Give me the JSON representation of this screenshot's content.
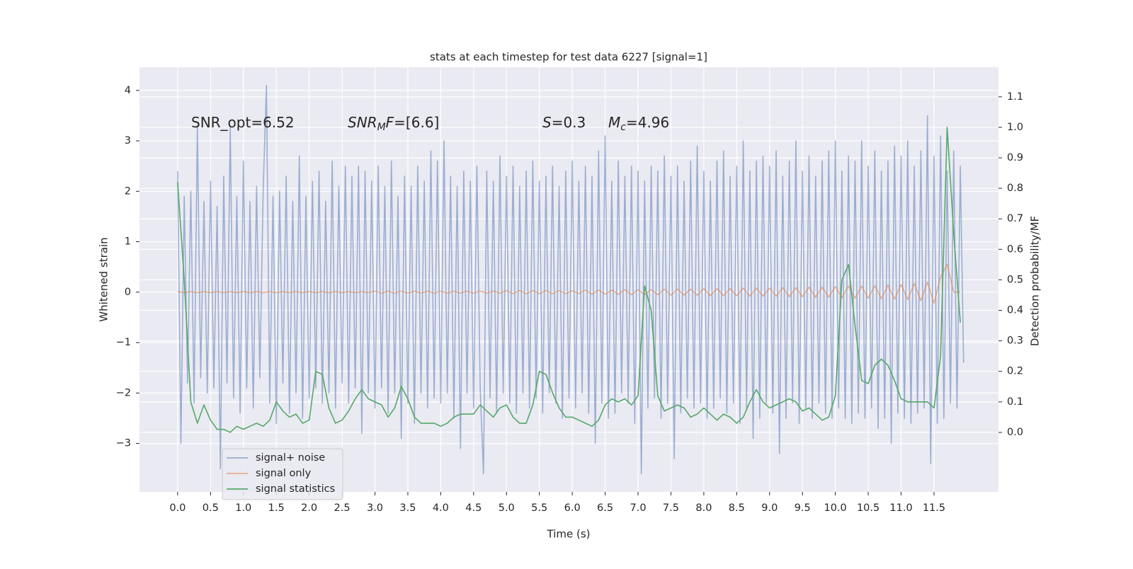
{
  "chart_data": {
    "type": "line",
    "title": "stats at each timestep for test data 6227 [signal=1]",
    "xlabel": "Time (s)",
    "ylabel": "Whitened strain",
    "y2label": "Detection probability/MF",
    "xlim": [
      -0.58,
      12.48
    ],
    "ylim": [
      -3.96,
      4.46
    ],
    "y2lim": [
      -0.195,
      1.197
    ],
    "xticks": [
      {
        "value": 0,
        "label": "0.0"
      },
      {
        "value": 0.5,
        "label": "0.5"
      },
      {
        "value": 1,
        "label": "1.0"
      },
      {
        "value": 1.5,
        "label": "1.5"
      },
      {
        "value": 2,
        "label": "2.0"
      },
      {
        "value": 2.5,
        "label": "2.5"
      },
      {
        "value": 3,
        "label": "3.0"
      },
      {
        "value": 3.5,
        "label": "3.5"
      },
      {
        "value": 4,
        "label": "4.0"
      },
      {
        "value": 4.5,
        "label": "4.5"
      },
      {
        "value": 5,
        "label": "5.0"
      },
      {
        "value": 5.5,
        "label": "5.5"
      },
      {
        "value": 6,
        "label": "6.0"
      },
      {
        "value": 6.5,
        "label": "6.5"
      },
      {
        "value": 7,
        "label": "7.0"
      },
      {
        "value": 7.5,
        "label": "7.5"
      },
      {
        "value": 8,
        "label": "8.0"
      },
      {
        "value": 8.5,
        "label": "8.5"
      },
      {
        "value": 9,
        "label": "9.0"
      },
      {
        "value": 9.5,
        "label": "9.5"
      },
      {
        "value": 10,
        "label": "10.0"
      },
      {
        "value": 10.5,
        "label": "10.5"
      },
      {
        "value": 11,
        "label": "11.0"
      },
      {
        "value": 11.5,
        "label": "11.5"
      }
    ],
    "yticks": [
      {
        "value": -3,
        "label": "−3"
      },
      {
        "value": -2,
        "label": "−2"
      },
      {
        "value": -1,
        "label": "−1"
      },
      0,
      1,
      2,
      3,
      4
    ],
    "y2ticks": [
      {
        "value": 0,
        "label": "0.0"
      },
      {
        "value": 0.1,
        "label": "0.1"
      },
      {
        "value": 0.2,
        "label": "0.2"
      },
      {
        "value": 0.3,
        "label": "0.3"
      },
      {
        "value": 0.4,
        "label": "0.4"
      },
      {
        "value": 0.5,
        "label": "0.5"
      },
      {
        "value": 0.6,
        "label": "0.6"
      },
      {
        "value": 0.7,
        "label": "0.7"
      },
      {
        "value": 0.8,
        "label": "0.8"
      },
      {
        "value": 0.9,
        "label": "0.9"
      },
      {
        "value": 1,
        "label": "1.0"
      },
      {
        "value": 1.1,
        "label": "1.1"
      }
    ],
    "grid": true,
    "legend_loc": "lower left",
    "annotations": [
      {
        "parts": [
          {
            "text": "SNR_opt=6.52"
          }
        ]
      },
      {
        "parts": [
          {
            "text": "SNR",
            "italic": true
          },
          {
            "text": "M",
            "italic": true,
            "sub": true
          },
          {
            "text": "F",
            "italic": true
          },
          {
            "text": "=[6.6]"
          }
        ]
      },
      {
        "parts": [
          {
            "text": "S",
            "italic": true
          },
          {
            "text": "=0.3"
          }
        ]
      },
      {
        "parts": [
          {
            "text": "M",
            "italic": true
          },
          {
            "text": "c",
            "italic": true,
            "sub": true
          },
          {
            "text": "=4.96"
          }
        ]
      }
    ],
    "series": [
      {
        "name": "signal+ noise",
        "color": "#4c72b0",
        "opacity": 0.5,
        "x": [
          0,
          0.05,
          0.1,
          0.15,
          0.2,
          0.25,
          0.3,
          0.35,
          0.4,
          0.45,
          0.5,
          0.55,
          0.6,
          0.65,
          0.7,
          0.75,
          0.8,
          0.85,
          0.9,
          0.95,
          1,
          1.05,
          1.1,
          1.15,
          1.2,
          1.25,
          1.3,
          1.35,
          1.4,
          1.45,
          1.5,
          1.55,
          1.6,
          1.65,
          1.7,
          1.75,
          1.8,
          1.85,
          1.9,
          1.95,
          2,
          2.05,
          2.1,
          2.15,
          2.2,
          2.25,
          2.3,
          2.35,
          2.4,
          2.45,
          2.5,
          2.55,
          2.6,
          2.65,
          2.7,
          2.75,
          2.8,
          2.85,
          2.9,
          2.95,
          3,
          3.05,
          3.1,
          3.15,
          3.2,
          3.25,
          3.3,
          3.35,
          3.4,
          3.45,
          3.5,
          3.55,
          3.6,
          3.65,
          3.7,
          3.75,
          3.8,
          3.85,
          3.9,
          3.95,
          4,
          4.05,
          4.1,
          4.15,
          4.2,
          4.25,
          4.3,
          4.35,
          4.4,
          4.45,
          4.5,
          4.55,
          4.6,
          4.65,
          4.7,
          4.75,
          4.8,
          4.85,
          4.9,
          4.95,
          5,
          5.05,
          5.1,
          5.15,
          5.2,
          5.25,
          5.3,
          5.35,
          5.4,
          5.45,
          5.5,
          5.55,
          5.6,
          5.65,
          5.7,
          5.75,
          5.8,
          5.85,
          5.9,
          5.95,
          6,
          6.05,
          6.1,
          6.15,
          6.2,
          6.25,
          6.3,
          6.35,
          6.4,
          6.45,
          6.5,
          6.55,
          6.6,
          6.65,
          6.7,
          6.75,
          6.8,
          6.85,
          6.9,
          6.95,
          7,
          7.05,
          7.1,
          7.15,
          7.2,
          7.25,
          7.3,
          7.35,
          7.4,
          7.45,
          7.5,
          7.55,
          7.6,
          7.65,
          7.7,
          7.75,
          7.8,
          7.85,
          7.9,
          7.95,
          8,
          8.05,
          8.1,
          8.15,
          8.2,
          8.25,
          8.3,
          8.35,
          8.4,
          8.45,
          8.5,
          8.55,
          8.6,
          8.65,
          8.7,
          8.75,
          8.8,
          8.85,
          8.9,
          8.95,
          9,
          9.05,
          9.1,
          9.15,
          9.2,
          9.25,
          9.3,
          9.35,
          9.4,
          9.45,
          9.5,
          9.55,
          9.6,
          9.65,
          9.7,
          9.75,
          9.8,
          9.85,
          9.9,
          9.95,
          10,
          10.05,
          10.1,
          10.15,
          10.2,
          10.25,
          10.3,
          10.35,
          10.4,
          10.45,
          10.5,
          10.55,
          10.6,
          10.65,
          10.7,
          10.75,
          10.8,
          10.85,
          10.9,
          10.95,
          11,
          11.05,
          11.1,
          11.15,
          11.2,
          11.25,
          11.3,
          11.35,
          11.4,
          11.45,
          11.5,
          11.55,
          11.6,
          11.65,
          11.7,
          11.75,
          11.8,
          11.85,
          11.9,
          11.95
        ],
        "values": [
          2.4,
          -3.0,
          1.9,
          -1.8,
          2.0,
          -2.2,
          3.3,
          -1.7,
          1.8,
          -2.0,
          2.2,
          -1.9,
          1.7,
          -3.5,
          2.3,
          -1.8,
          3.3,
          -2.1,
          1.9,
          -2.4,
          2.6,
          -1.9,
          1.8,
          -2.3,
          2.1,
          -1.7,
          2.0,
          4.1,
          -2.2,
          1.9,
          -2.6,
          2.0,
          -1.8,
          2.3,
          -2.4,
          1.8,
          -2.0,
          2.7,
          -2.5,
          1.9,
          -2.1,
          2.2,
          -1.9,
          2.4,
          -2.2,
          1.8,
          -2.0,
          2.6,
          -2.3,
          2.1,
          -1.8,
          2.5,
          -2.2,
          2.3,
          -1.9,
          2.5,
          -2.8,
          2.4,
          -2.0,
          2.2,
          -2.3,
          2.5,
          -1.9,
          2.1,
          -2.4,
          2.6,
          -2.0,
          1.9,
          -2.9,
          2.3,
          -2.2,
          2.1,
          -2.6,
          2.5,
          -2.0,
          2.2,
          -2.3,
          2.8,
          -2.1,
          2.6,
          -2.2,
          3.0,
          -2.0,
          2.3,
          -2.5,
          2.1,
          -3.1,
          2.4,
          -2.0,
          2.2,
          -2.3,
          2.5,
          -1.9,
          -3.6,
          2.4,
          -2.1,
          2.2,
          -2.4,
          2.7,
          -2.0,
          2.3,
          -2.2,
          2.5,
          -2.4,
          2.1,
          -2.0,
          2.4,
          -2.3,
          2.6,
          -2.1,
          2.2,
          -2.4,
          2.3,
          -2.0,
          2.5,
          -2.2,
          2.1,
          -2.5,
          2.4,
          -2.1,
          2.6,
          -2.3,
          2.2,
          -2.0,
          2.5,
          -2.4,
          2.3,
          -3.0,
          2.8,
          -2.2,
          3.1,
          -2.5,
          2.2,
          -2.4,
          2.6,
          -2.0,
          2.3,
          -2.2,
          2.5,
          -2.6,
          2.4,
          -3.6,
          2.2,
          -2.3,
          2.5,
          -2.1,
          2.4,
          -2.5,
          2.7,
          -2.2,
          2.3,
          -3.3,
          2.5,
          -2.4,
          2.2,
          -2.1,
          2.6,
          -2.3,
          2.9,
          -2.2,
          2.4,
          -2.5,
          2.2,
          -2.3,
          2.6,
          -2.1,
          2.8,
          -2.4,
          2.3,
          -2.2,
          2.5,
          -2.6,
          3.0,
          -2.3,
          2.4,
          -2.9,
          2.6,
          -2.5,
          2.7,
          -2.2,
          2.5,
          -2.4,
          2.8,
          -3.2,
          2.3,
          -2.5,
          2.6,
          -2.2,
          3.0,
          -2.6,
          2.4,
          -2.3,
          2.7,
          -2.5,
          2.3,
          -2.2,
          2.6,
          -2.4,
          2.8,
          -2.5,
          3.0,
          -2.3,
          2.4,
          -2.5,
          2.7,
          -2.6,
          2.6,
          -2.4,
          3.0,
          -2.5,
          2.5,
          -2.3,
          2.8,
          -2.7,
          2.4,
          -2.5,
          2.6,
          -3.0,
          2.9,
          -2.4,
          2.7,
          -2.5,
          3.0,
          -2.6,
          2.5,
          -2.4,
          2.8,
          -2.3,
          3.5,
          -3.4,
          2.7,
          -2.6,
          3.1,
          -2.5,
          2.4,
          -2.2,
          2.8,
          -2.3,
          2.5,
          -1.4
        ]
      },
      {
        "name": "signal only",
        "color": "#dd8452",
        "opacity": 0.6,
        "x": [
          0,
          0.1,
          0.2,
          0.3,
          0.4,
          0.5,
          0.6,
          0.7,
          0.8,
          0.9,
          1,
          1.1,
          1.2,
          1.3,
          1.4,
          1.5,
          1.6,
          1.7,
          1.8,
          1.9,
          2,
          2.1,
          2.2,
          2.3,
          2.4,
          2.5,
          2.6,
          2.7,
          2.8,
          2.9,
          3,
          3.1,
          3.2,
          3.3,
          3.4,
          3.5,
          3.6,
          3.7,
          3.8,
          3.9,
          4,
          4.1,
          4.2,
          4.3,
          4.4,
          4.5,
          4.6,
          4.7,
          4.8,
          4.9,
          5,
          5.1,
          5.2,
          5.3,
          5.4,
          5.5,
          5.6,
          5.7,
          5.8,
          5.9,
          6,
          6.1,
          6.2,
          6.3,
          6.4,
          6.5,
          6.6,
          6.7,
          6.8,
          6.9,
          7,
          7.1,
          7.2,
          7.3,
          7.4,
          7.5,
          7.6,
          7.7,
          7.8,
          7.9,
          8,
          8.1,
          8.2,
          8.3,
          8.4,
          8.5,
          8.6,
          8.7,
          8.8,
          8.9,
          9,
          9.1,
          9.2,
          9.3,
          9.4,
          9.5,
          9.6,
          9.7,
          9.8,
          9.9,
          10,
          10.1,
          10.2,
          10.3,
          10.4,
          10.5,
          10.6,
          10.7,
          10.8,
          10.9,
          11,
          11.1,
          11.2,
          11.3,
          11.4,
          11.5,
          11.6,
          11.7,
          11.8,
          11.9
        ],
        "values": [
          0.01,
          -0.01,
          0.01,
          -0.01,
          0.01,
          -0.01,
          0.01,
          -0.01,
          0.01,
          -0.01,
          0.01,
          -0.01,
          0.01,
          -0.01,
          0.01,
          -0.01,
          0.01,
          -0.01,
          0.01,
          -0.01,
          0.01,
          -0.01,
          0.01,
          -0.01,
          0.01,
          -0.01,
          0.01,
          -0.01,
          0.01,
          -0.01,
          0.02,
          -0.02,
          0.02,
          -0.02,
          0.02,
          -0.02,
          0.02,
          -0.02,
          0.02,
          -0.02,
          0.02,
          -0.02,
          0.02,
          -0.02,
          0.02,
          -0.02,
          0.02,
          -0.02,
          0.02,
          -0.02,
          0.03,
          -0.03,
          0.03,
          -0.03,
          0.03,
          -0.03,
          0.03,
          -0.03,
          0.03,
          -0.03,
          0.03,
          -0.03,
          0.04,
          -0.04,
          0.04,
          -0.04,
          0.04,
          -0.04,
          0.05,
          -0.05,
          0.05,
          -0.05,
          0.05,
          -0.05,
          0.06,
          -0.06,
          0.06,
          -0.06,
          0.06,
          -0.06,
          0.07,
          -0.07,
          0.07,
          -0.07,
          0.07,
          -0.07,
          0.08,
          -0.08,
          0.08,
          -0.08,
          0.08,
          -0.08,
          0.09,
          -0.09,
          0.09,
          -0.09,
          0.1,
          -0.1,
          0.1,
          -0.1,
          0.11,
          -0.11,
          0.12,
          -0.12,
          0.12,
          -0.12,
          0.13,
          -0.13,
          0.14,
          -0.14,
          0.15,
          -0.15,
          0.17,
          -0.17,
          0.2,
          -0.22,
          0.3,
          0.55,
          0.0,
          0.0
        ]
      },
      {
        "name": "signal statistics",
        "color": "#55a868",
        "axis": "y2",
        "x": [
          0,
          0.1,
          0.2,
          0.3,
          0.4,
          0.5,
          0.6,
          0.7,
          0.8,
          0.9,
          1,
          1.1,
          1.2,
          1.3,
          1.4,
          1.5,
          1.6,
          1.7,
          1.8,
          1.9,
          2,
          2.1,
          2.2,
          2.3,
          2.4,
          2.5,
          2.6,
          2.7,
          2.8,
          2.9,
          3,
          3.1,
          3.2,
          3.3,
          3.4,
          3.5,
          3.6,
          3.7,
          3.8,
          3.9,
          4,
          4.1,
          4.2,
          4.3,
          4.4,
          4.5,
          4.6,
          4.7,
          4.8,
          4.9,
          5,
          5.1,
          5.2,
          5.3,
          5.4,
          5.5,
          5.6,
          5.7,
          5.8,
          5.9,
          6,
          6.1,
          6.2,
          6.3,
          6.4,
          6.5,
          6.6,
          6.7,
          6.8,
          6.9,
          7,
          7.1,
          7.2,
          7.3,
          7.4,
          7.5,
          7.6,
          7.7,
          7.8,
          7.9,
          8,
          8.1,
          8.2,
          8.3,
          8.4,
          8.5,
          8.6,
          8.7,
          8.8,
          8.9,
          9,
          9.1,
          9.2,
          9.3,
          9.4,
          9.5,
          9.6,
          9.7,
          9.8,
          9.9,
          10,
          10.1,
          10.2,
          10.3,
          10.4,
          10.5,
          10.6,
          10.7,
          10.8,
          10.9,
          11,
          11.1,
          11.2,
          11.3,
          11.4,
          11.5,
          11.6,
          11.7,
          11.8,
          11.9
        ],
        "values": [
          0.82,
          0.5,
          0.1,
          0.03,
          0.09,
          0.04,
          0.01,
          0.01,
          0.0,
          0.02,
          0.01,
          0.02,
          0.03,
          0.02,
          0.04,
          0.1,
          0.07,
          0.05,
          0.06,
          0.03,
          0.04,
          0.2,
          0.19,
          0.08,
          0.03,
          0.04,
          0.07,
          0.11,
          0.14,
          0.11,
          0.1,
          0.09,
          0.05,
          0.08,
          0.15,
          0.11,
          0.05,
          0.03,
          0.03,
          0.03,
          0.02,
          0.03,
          0.05,
          0.06,
          0.06,
          0.06,
          0.09,
          0.07,
          0.05,
          0.08,
          0.09,
          0.05,
          0.03,
          0.03,
          0.09,
          0.2,
          0.19,
          0.13,
          0.08,
          0.05,
          0.05,
          0.04,
          0.03,
          0.02,
          0.04,
          0.09,
          0.11,
          0.1,
          0.11,
          0.09,
          0.12,
          0.48,
          0.4,
          0.12,
          0.07,
          0.08,
          0.09,
          0.08,
          0.05,
          0.06,
          0.08,
          0.06,
          0.04,
          0.06,
          0.05,
          0.03,
          0.05,
          0.1,
          0.14,
          0.1,
          0.08,
          0.09,
          0.1,
          0.11,
          0.1,
          0.07,
          0.08,
          0.06,
          0.04,
          0.05,
          0.12,
          0.5,
          0.55,
          0.35,
          0.17,
          0.16,
          0.22,
          0.24,
          0.22,
          0.17,
          0.11,
          0.1,
          0.1,
          0.1,
          0.1,
          0.08,
          0.25,
          1.0,
          0.65,
          0.36
        ]
      }
    ]
  }
}
